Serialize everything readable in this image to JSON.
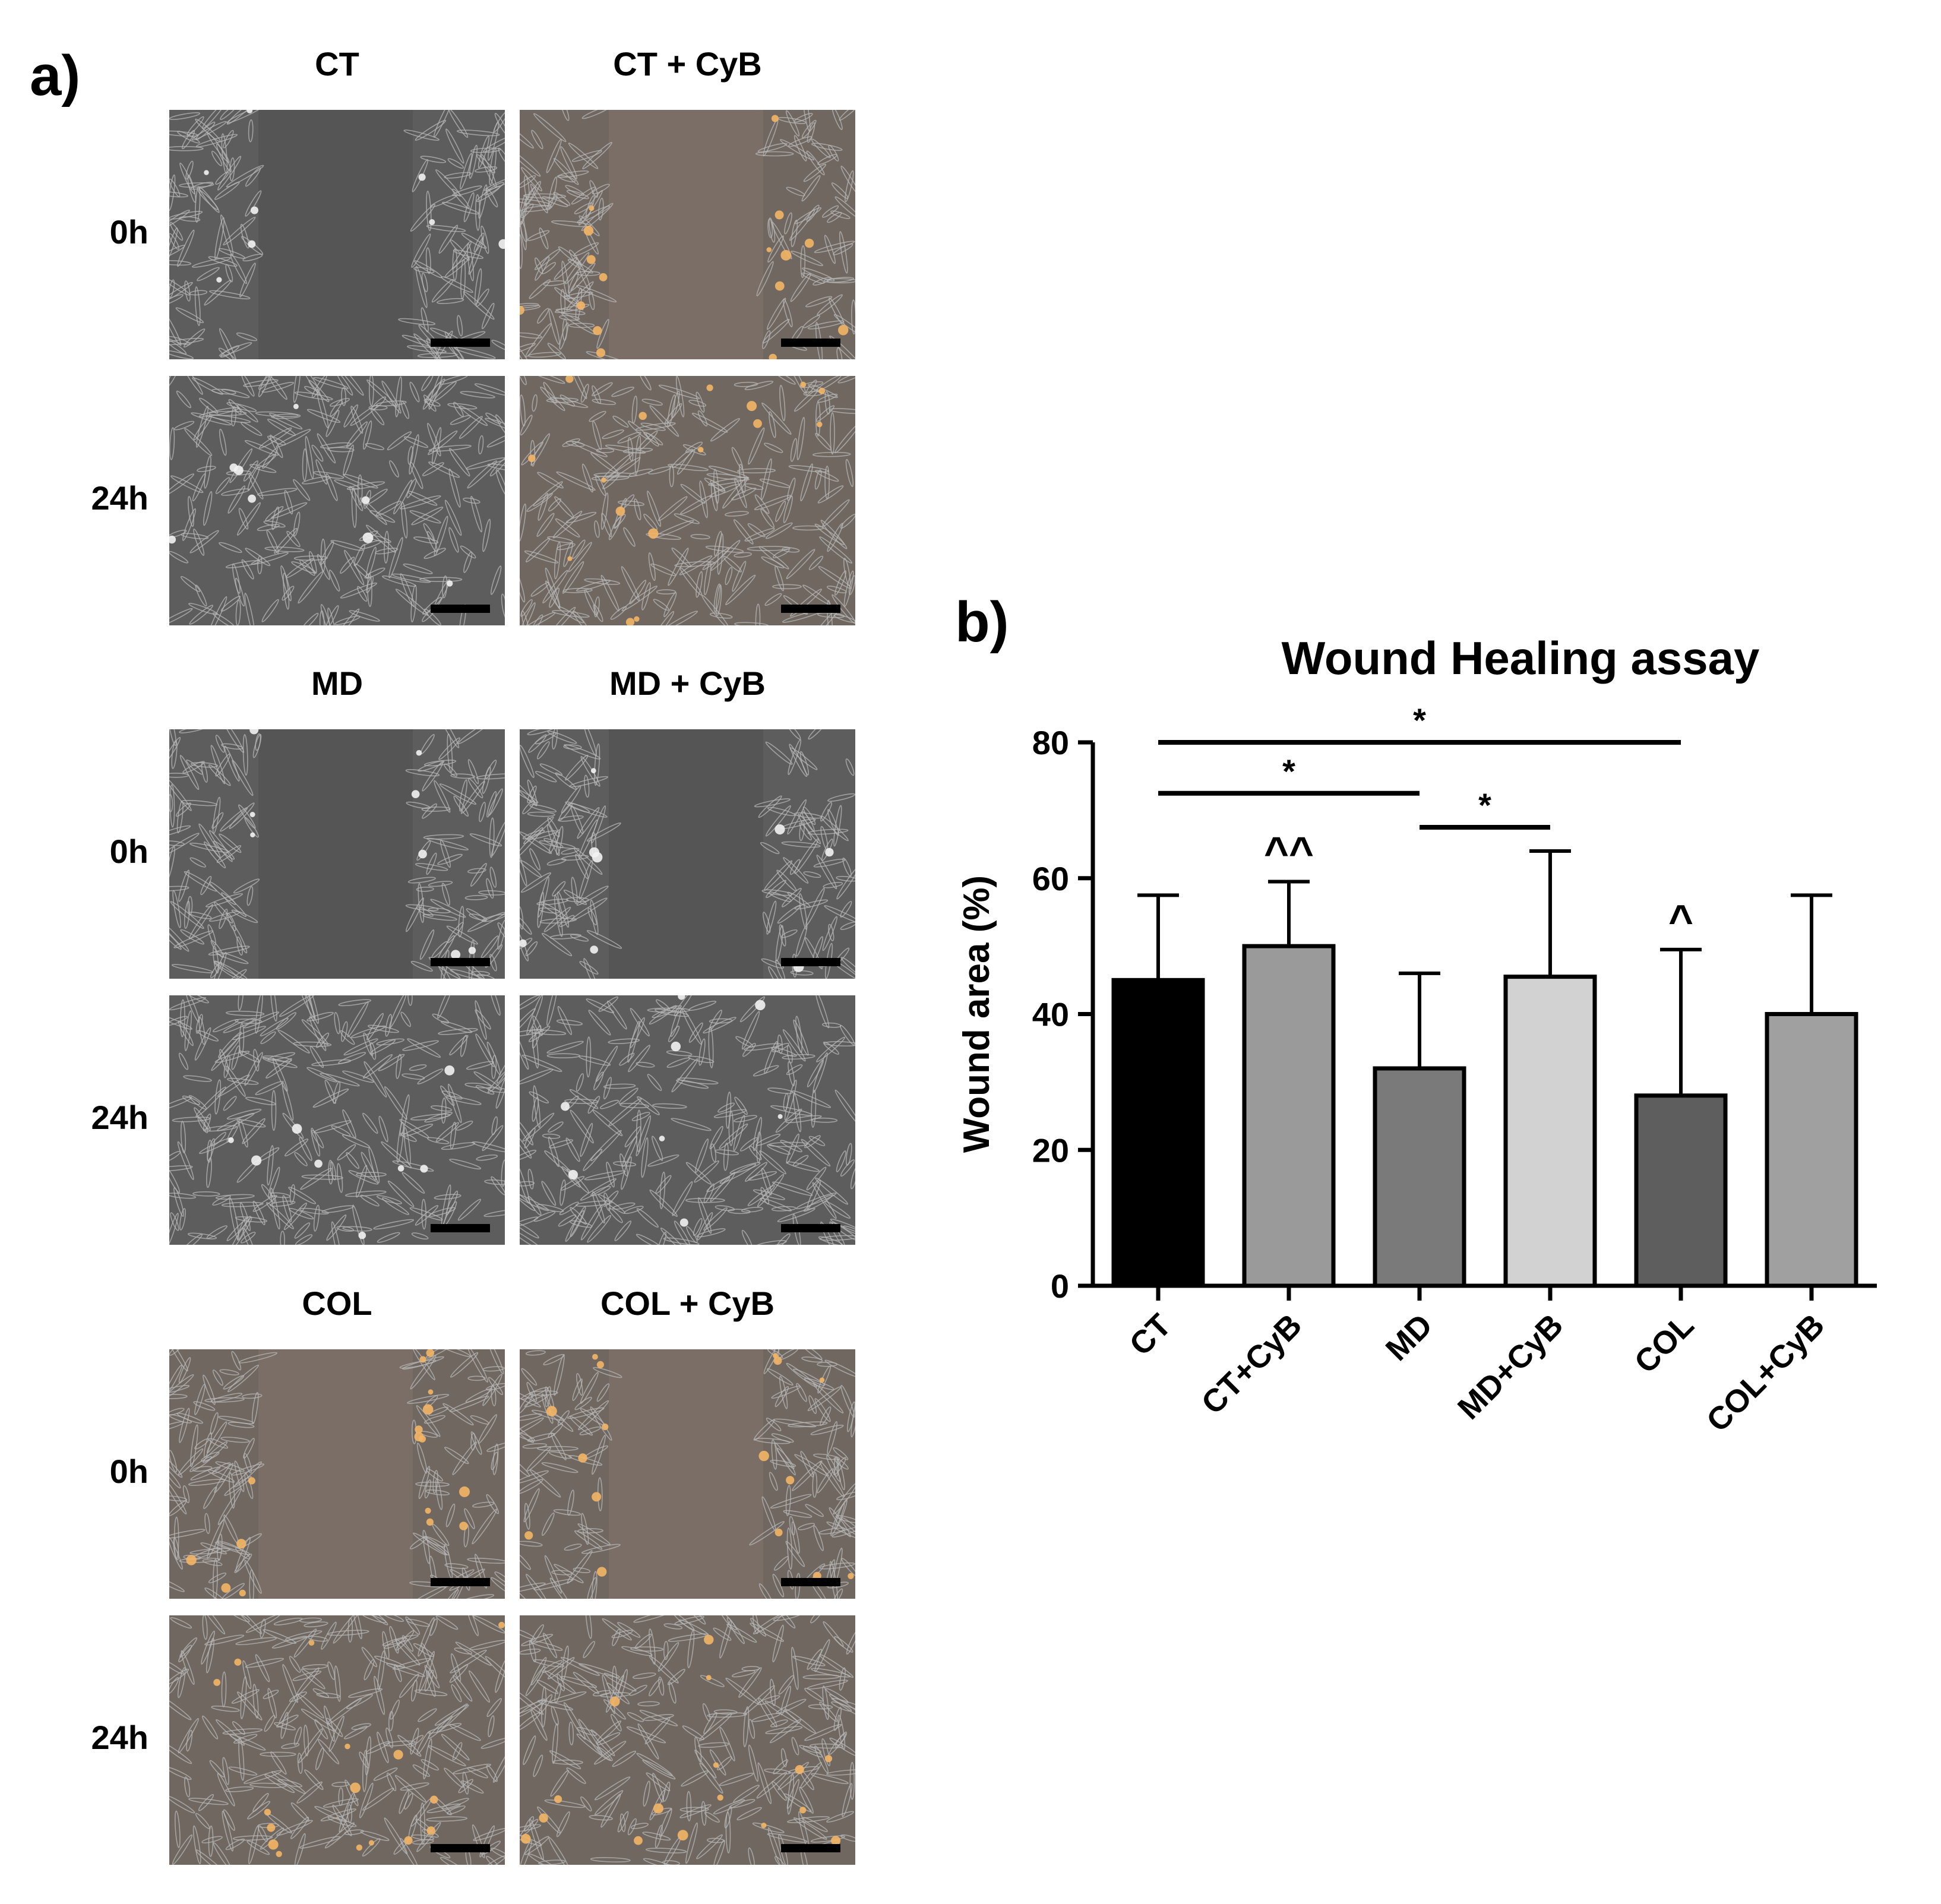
{
  "panel_a": {
    "label": "a)",
    "groups": [
      {
        "left_header": "CT",
        "right_header": "CT + CyB"
      },
      {
        "left_header": "MD",
        "right_header": "MD + CyB"
      },
      {
        "left_header": "COL",
        "right_header": "COL + CyB"
      }
    ],
    "time_labels": [
      "0h",
      "24h"
    ],
    "images": {
      "description_tint": [
        "gray",
        "orange-tinted",
        "gray",
        "gray",
        "orange-tinted",
        "orange-tinted"
      ]
    }
  },
  "panel_b": {
    "label": "b)"
  },
  "chart_data": {
    "type": "bar",
    "title": "Wound Healing assay",
    "xlabel": "",
    "ylabel": "Wound area (%)",
    "ylim": [
      0,
      80
    ],
    "yticks": [
      0,
      20,
      40,
      60,
      80
    ],
    "categories": [
      "CT",
      "CT+CyB",
      "MD",
      "MD+CyB",
      "COL",
      "COL+CyB"
    ],
    "values": [
      45,
      50,
      32,
      45.5,
      28,
      40
    ],
    "error_upper": [
      57.5,
      59.5,
      46,
      64,
      49.5,
      57.5
    ],
    "bar_colors": [
      "#000000",
      "#9a9a9a",
      "#7a7a7a",
      "#d2d2d2",
      "#5e5e5e",
      "#a0a0a0"
    ],
    "bar_annotations": [
      {
        "category": "CT+CyB",
        "text": "^^"
      },
      {
        "category": "COL",
        "text": "^"
      }
    ],
    "significance": [
      {
        "from": "CT",
        "to": "COL",
        "y": 80,
        "text": "*"
      },
      {
        "from": "CT",
        "to": "MD",
        "y": 72.5,
        "text": "*"
      },
      {
        "from": "MD",
        "to": "MD+CyB",
        "y": 67.5,
        "text": "*"
      }
    ],
    "grid": false
  }
}
